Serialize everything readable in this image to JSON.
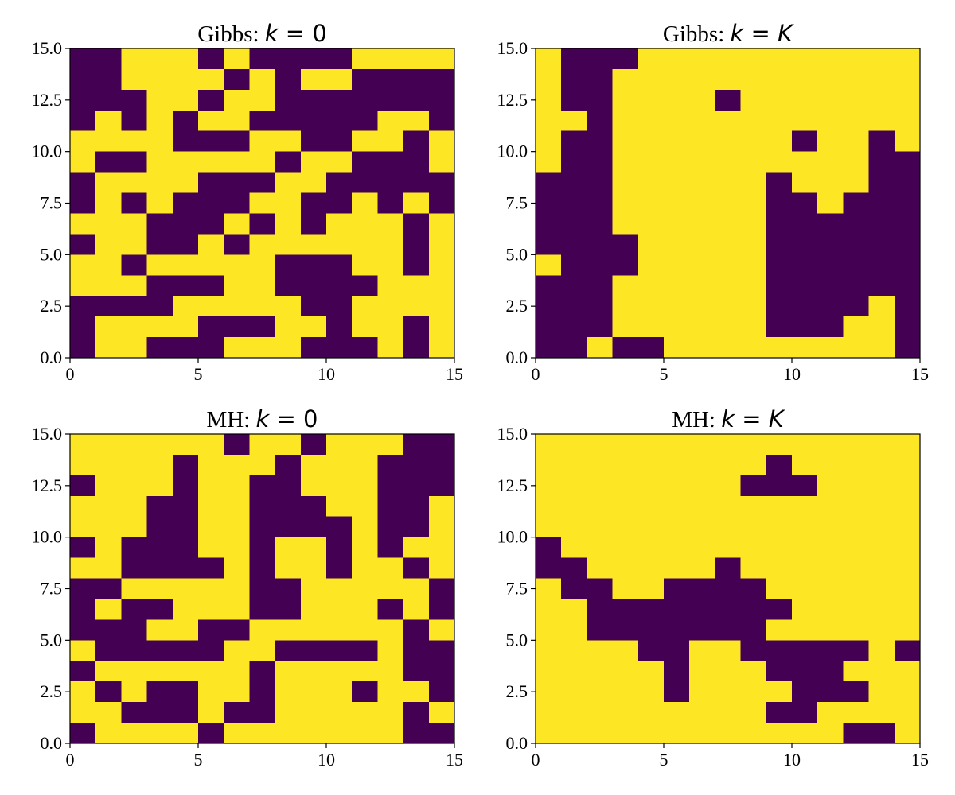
{
  "colors": {
    "low": "#440154",
    "high": "#fde725",
    "axis": "#000000"
  },
  "chart_data": [
    {
      "type": "heatmap",
      "title_prefix": "Gibbs:",
      "title_math": "k = 0",
      "xlim": [
        0,
        15
      ],
      "ylim": [
        0,
        15
      ],
      "xticks": [
        "0",
        "5",
        "10",
        "15"
      ],
      "yticks": [
        "0.0",
        "2.5",
        "5.0",
        "7.5",
        "10.0",
        "12.5",
        "15.0"
      ],
      "grid_rows_top_to_bottom": [
        "001110100001111",
        "001111010110000",
        "000110110000000",
        "010101100000110",
        "111100011001101",
        "100111110110001",
        "011110001100000",
        "010100011001010",
        "111000101011101",
        "011001011111101",
        "110111110001101",
        "111000110000111",
        "000011111001111",
        "011110001101101",
        "011000111000101"
      ]
    },
    {
      "type": "heatmap",
      "title_prefix": "Gibbs:",
      "title_math": "k = K",
      "xlim": [
        0,
        15
      ],
      "ylim": [
        0,
        15
      ],
      "xticks": [
        "0",
        "5",
        "10",
        "15"
      ],
      "yticks": [
        "0.0",
        "2.5",
        "5.0",
        "7.5",
        "10.0",
        "12.5",
        "15.0"
      ],
      "grid_rows_top_to_bottom": [
        "100011111111111",
        "100111111111111",
        "100111101111111",
        "110111111111111",
        "100111111101101",
        "100111111111100",
        "000111111011100",
        "000111111001000",
        "000111111000000",
        "000011111000000",
        "100011111000000",
        "000111111000000",
        "000111111000010",
        "000111111000110",
        "001001111111110"
      ]
    },
    {
      "type": "heatmap",
      "title_prefix": "MH:",
      "title_math": "k = 0",
      "xlim": [
        0,
        15
      ],
      "ylim": [
        0,
        15
      ],
      "xticks": [
        "0",
        "5",
        "10",
        "15"
      ],
      "yticks": [
        "0.0",
        "2.5",
        "5.0",
        "7.5",
        "10.0",
        "12.5",
        "15.0"
      ],
      "grid_rows_top_to_bottom": [
        "111111011011100",
        "111101110111000",
        "011101100111000",
        "111001100011001",
        "111001100001001",
        "010001101101011",
        "110000101101101",
        "001111100111110",
        "010011100111010",
        "000110011111101",
        "100000110000100",
        "011111101111100",
        "101001101110110",
        "110001001111101",
        "011110111111100"
      ]
    },
    {
      "type": "heatmap",
      "title_prefix": "MH:",
      "title_math": "k = K",
      "xlim": [
        0,
        15
      ],
      "ylim": [
        0,
        15
      ],
      "xticks": [
        "0",
        "5",
        "10",
        "15"
      ],
      "yticks": [
        "0.0",
        "2.5",
        "5.0",
        "7.5",
        "10.0",
        "12.5",
        "15.0"
      ],
      "grid_rows_top_to_bottom": [
        "111111111111111",
        "111111111011111",
        "111111110001111",
        "111111111111111",
        "111111111111111",
        "011111111111111",
        "001111101111111",
        "100110000111111",
        "110000000011111",
        "110000000111111",
        "111100110000010",
        "111110111000111",
        "111110111100011",
        "111111111001111",
        "111111111111001"
      ]
    }
  ]
}
